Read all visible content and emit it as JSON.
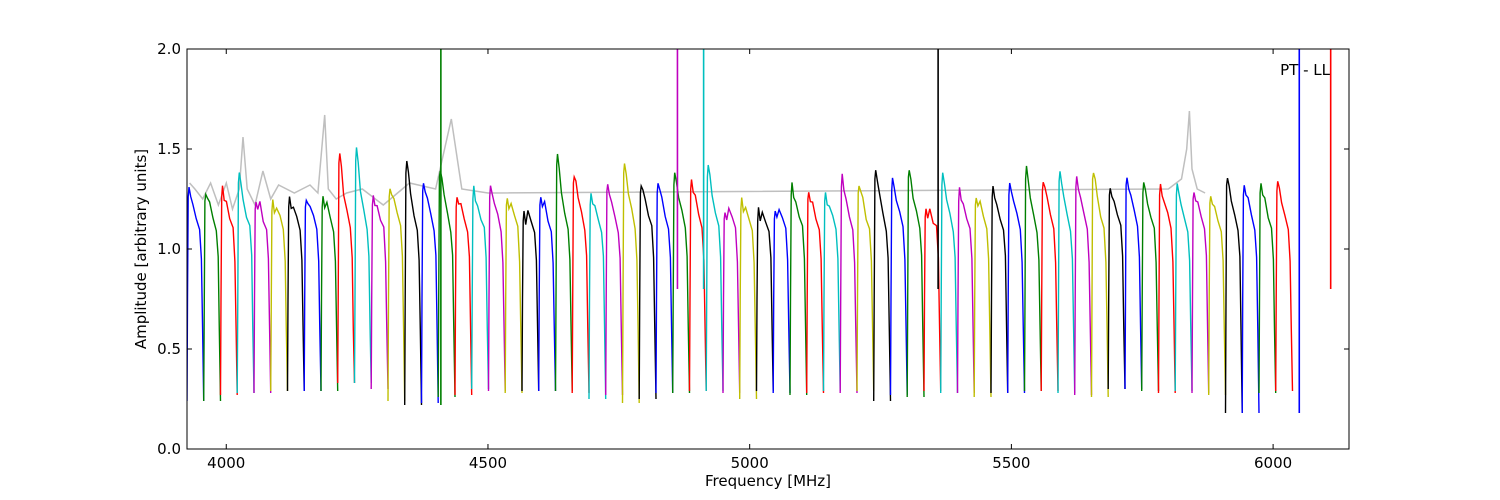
{
  "chart_data": {
    "type": "line",
    "title": "",
    "xlabel": "Frequency [MHz]",
    "ylabel": "Amplitude [arbitrary units]",
    "xlim": [
      3925,
      6145
    ],
    "ylim": [
      0.0,
      2.0
    ],
    "x_ticks": [
      4000,
      4500,
      5000,
      5500,
      6000
    ],
    "y_ticks": [
      0.0,
      0.5,
      1.0,
      1.5,
      2.0
    ],
    "x_tick_labels": [
      "4000",
      "4500",
      "5000",
      "5500",
      "6000"
    ],
    "y_tick_labels": [
      "0.0",
      "0.5",
      "1.0",
      "1.5",
      "2.0"
    ],
    "annotation": "PT - LL",
    "annotation_position": "top-right",
    "grid": false,
    "legend": "none",
    "channel_width_mhz": 32,
    "color_cycle": [
      "#0000ff",
      "#007f00",
      "#ff0000",
      "#00bfbf",
      "#bf00bf",
      "#bfbf00",
      "#000000"
    ],
    "background_series": {
      "color": "#bfbfbf",
      "description_free": true,
      "x": [
        3930,
        3940,
        3955,
        3970,
        3985,
        4000,
        4012,
        4025,
        4032,
        4040,
        4055,
        4070,
        4085,
        4100,
        4115,
        4130,
        4145,
        4160,
        4175,
        4188,
        4195,
        4210,
        4230,
        4260,
        4300,
        4350,
        4400,
        4430,
        4450,
        4500,
        5800,
        5825,
        5835,
        5840,
        5845,
        5855,
        5870
      ],
      "y": [
        1.33,
        1.3,
        1.25,
        1.33,
        1.22,
        1.33,
        1.2,
        1.3,
        1.56,
        1.3,
        1.22,
        1.39,
        1.25,
        1.32,
        1.3,
        1.28,
        1.3,
        1.32,
        1.28,
        1.67,
        1.3,
        1.25,
        1.28,
        1.3,
        1.22,
        1.33,
        1.3,
        1.65,
        1.3,
        1.28,
        1.3,
        1.35,
        1.5,
        1.69,
        1.4,
        1.3,
        1.28
      ]
    },
    "series_peaks": [
      1.31,
      1.29,
      1.31,
      1.38,
      1.25,
      1.24,
      1.26,
      1.26,
      1.26,
      1.48,
      1.49,
      1.27,
      1.31,
      1.43,
      1.34,
      1.41,
      1.26,
      1.3,
      1.31,
      1.27,
      1.19,
      1.27,
      1.47,
      1.38,
      1.27,
      1.34,
      1.43,
      1.33,
      1.33,
      1.37,
      1.35,
      1.41,
      1.2,
      1.25,
      1.19,
      1.2,
      1.32,
      1.3,
      1.29,
      1.36,
      1.33,
      1.4,
      1.34,
      1.41,
      1.21,
      1.37,
      1.29,
      1.27,
      1.31,
      1.32,
      1.4,
      1.34,
      1.39,
      1.36,
      1.4,
      1.32,
      1.37,
      1.33,
      1.32,
      1.32,
      1.3,
      1.28,
      1.37,
      1.32,
      1.33,
      1.34
    ],
    "series_minima": [
      0.24,
      0.24,
      0.27,
      0.28,
      0.28,
      0.29,
      0.29,
      0.29,
      0.29,
      0.33,
      0.33,
      0.3,
      0.24,
      0.22,
      0.23,
      0.26,
      0.27,
      0.3,
      0.29,
      0.28,
      0.29,
      0.29,
      0.29,
      0.28,
      0.25,
      0.27,
      0.23,
      0.25,
      0.28,
      0.28,
      0.29,
      0.29,
      0.28,
      0.25,
      0.29,
      0.28,
      0.27,
      0.28,
      0.29,
      0.28,
      0.29,
      0.24,
      0.27,
      0.26,
      0.29,
      0.28,
      0.28,
      0.26,
      0.28,
      0.28,
      0.29,
      0.29,
      0.28,
      0.27,
      0.26,
      0.3,
      0.3,
      0.29,
      0.28,
      0.29,
      0.28,
      0.27,
      0.18,
      0.18,
      0.28,
      0.29
    ],
    "spikes": [
      {
        "x": 4410,
        "y_from": 0.22,
        "y_to": 2.0,
        "color": "#007f00"
      },
      {
        "x": 4862,
        "y_from": 0.8,
        "y_to": 2.0,
        "color": "#bf00bf"
      },
      {
        "x": 4912,
        "y_from": 0.8,
        "y_to": 2.0,
        "color": "#00bfbf"
      },
      {
        "x": 5360,
        "y_from": 0.8,
        "y_to": 2.0,
        "color": "#000000"
      },
      {
        "x": 6050,
        "y_from": 0.18,
        "y_to": 2.0,
        "color": "#0000ff"
      },
      {
        "x": 6110,
        "y_from": 0.8,
        "y_to": 2.0,
        "color": "#ff0000"
      }
    ]
  }
}
